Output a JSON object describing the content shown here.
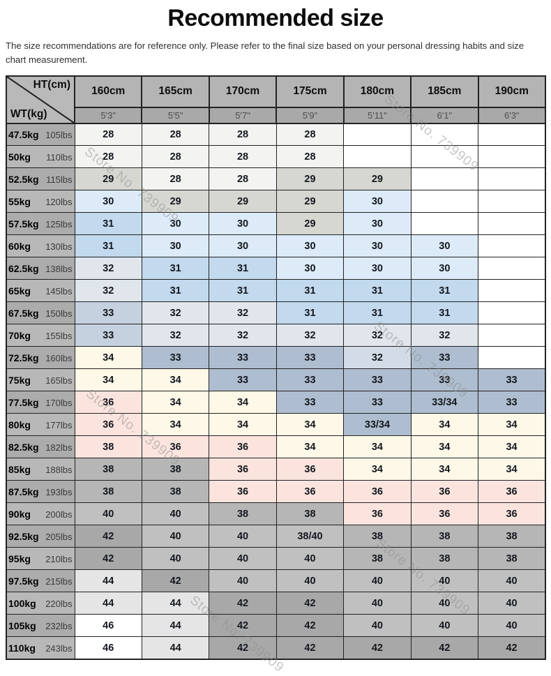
{
  "title": "Recommended size",
  "subtitle": "The size recommendations are for reference only. Please refer to the final size based on your personal dressing habits and size chart measurement.",
  "watermark_text": "Store No. 739909",
  "colors": {
    "header_cm_bg": "#b4b4b4",
    "header_ft_bg": "#a9a9a9",
    "header_ft_text": "#4e4e4e",
    "corner_bg": "#b9b9b9",
    "label_bg_odd": "#acacac",
    "label_bg_even": "#b8b8b8",
    "border": "#222222",
    "cell_text": "#14181e"
  },
  "chart_data": {
    "type": "table",
    "title": "Recommended size",
    "corner_top": "HT(cm)",
    "corner_bottom": "WT(kg)",
    "columns": [
      {
        "cm": "160cm",
        "ft": "5'3\""
      },
      {
        "cm": "165cm",
        "ft": "5'5\""
      },
      {
        "cm": "170cm",
        "ft": "5'7\""
      },
      {
        "cm": "175cm",
        "ft": "5'9\""
      },
      {
        "cm": "180cm",
        "ft": "5'11\""
      },
      {
        "cm": "185cm",
        "ft": "6'1\""
      },
      {
        "cm": "190cm",
        "ft": "6'3\""
      }
    ],
    "palette": {
      "empty": "#ffffff",
      "s28": "#f3f3f1",
      "s29": "#d7d7d2",
      "s30": "#dcebf7",
      "s31": "#c2d9ee",
      "s32": "#e0e6ec",
      "s32l": "#d3dce6",
      "s33a": "#c5d1de",
      "s33": "#aebdcf",
      "s34": "#fdf8e7",
      "s36": "#fbe4de",
      "s38": "#b6b6b6",
      "s40": "#c0c0c0",
      "s42": "#a8a8a8",
      "s44": "#e5e5e5",
      "s46": "#ffffff"
    },
    "rows": [
      {
        "kg": "47.5kg",
        "lbs": "105lbs",
        "cells": [
          [
            "28",
            "s28"
          ],
          [
            "28",
            "s28"
          ],
          [
            "28",
            "s28"
          ],
          [
            "28",
            "s28"
          ],
          [
            "",
            "empty"
          ],
          [
            "",
            "empty"
          ],
          [
            "",
            "empty"
          ]
        ]
      },
      {
        "kg": "50kg",
        "lbs": "110lbs",
        "cells": [
          [
            "28",
            "s28"
          ],
          [
            "28",
            "s28"
          ],
          [
            "28",
            "s28"
          ],
          [
            "28",
            "s28"
          ],
          [
            "",
            "empty"
          ],
          [
            "",
            "empty"
          ],
          [
            "",
            "empty"
          ]
        ]
      },
      {
        "kg": "52.5kg",
        "lbs": "115lbs",
        "cells": [
          [
            "29",
            "s29"
          ],
          [
            "28",
            "s28"
          ],
          [
            "28",
            "s28"
          ],
          [
            "29",
            "s29"
          ],
          [
            "29",
            "s29"
          ],
          [
            "",
            "empty"
          ],
          [
            "",
            "empty"
          ]
        ]
      },
      {
        "kg": "55kg",
        "lbs": "120lbs",
        "cells": [
          [
            "30",
            "s30"
          ],
          [
            "29",
            "s29"
          ],
          [
            "29",
            "s29"
          ],
          [
            "29",
            "s29"
          ],
          [
            "30",
            "s30"
          ],
          [
            "",
            "empty"
          ],
          [
            "",
            "empty"
          ]
        ]
      },
      {
        "kg": "57.5kg",
        "lbs": "125lbs",
        "cells": [
          [
            "31",
            "s31"
          ],
          [
            "30",
            "s30"
          ],
          [
            "30",
            "s30"
          ],
          [
            "29",
            "s29"
          ],
          [
            "30",
            "s30"
          ],
          [
            "",
            "empty"
          ],
          [
            "",
            "empty"
          ]
        ]
      },
      {
        "kg": "60kg",
        "lbs": "130lbs",
        "cells": [
          [
            "31",
            "s31"
          ],
          [
            "30",
            "s30"
          ],
          [
            "30",
            "s30"
          ],
          [
            "30",
            "s30"
          ],
          [
            "30",
            "s30"
          ],
          [
            "30",
            "s30"
          ],
          [
            "",
            "empty"
          ]
        ]
      },
      {
        "kg": "62.5kg",
        "lbs": "138lbs",
        "cells": [
          [
            "32",
            "s32"
          ],
          [
            "31",
            "s31"
          ],
          [
            "31",
            "s31"
          ],
          [
            "30",
            "s30"
          ],
          [
            "30",
            "s30"
          ],
          [
            "30",
            "s30"
          ],
          [
            "",
            "empty"
          ]
        ]
      },
      {
        "kg": "65kg",
        "lbs": "145lbs",
        "cells": [
          [
            "32",
            "s32"
          ],
          [
            "31",
            "s31"
          ],
          [
            "31",
            "s31"
          ],
          [
            "31",
            "s31"
          ],
          [
            "31",
            "s31"
          ],
          [
            "31",
            "s31"
          ],
          [
            "",
            "empty"
          ]
        ]
      },
      {
        "kg": "67.5kg",
        "lbs": "150lbs",
        "cells": [
          [
            "33",
            "s33a"
          ],
          [
            "32",
            "s32"
          ],
          [
            "32",
            "s32"
          ],
          [
            "31",
            "s31"
          ],
          [
            "31",
            "s31"
          ],
          [
            "31",
            "s31"
          ],
          [
            "",
            "empty"
          ]
        ]
      },
      {
        "kg": "70kg",
        "lbs": "155lbs",
        "cells": [
          [
            "33",
            "s33a"
          ],
          [
            "32",
            "s32"
          ],
          [
            "32",
            "s32"
          ],
          [
            "32",
            "s32"
          ],
          [
            "32",
            "s32"
          ],
          [
            "32",
            "s32"
          ],
          [
            "",
            "empty"
          ]
        ]
      },
      {
        "kg": "72.5kg",
        "lbs": "160lbs",
        "cells": [
          [
            "34",
            "s34"
          ],
          [
            "33",
            "s33"
          ],
          [
            "33",
            "s33"
          ],
          [
            "33",
            "s33"
          ],
          [
            "32",
            "s32l"
          ],
          [
            "33",
            "s33"
          ],
          [
            "",
            "empty"
          ]
        ]
      },
      {
        "kg": "75kg",
        "lbs": "165lbs",
        "cells": [
          [
            "34",
            "s34"
          ],
          [
            "34",
            "s34"
          ],
          [
            "33",
            "s33"
          ],
          [
            "33",
            "s33"
          ],
          [
            "33",
            "s33"
          ],
          [
            "33",
            "s33"
          ],
          [
            "33",
            "s33"
          ]
        ]
      },
      {
        "kg": "77.5kg",
        "lbs": "170lbs",
        "cells": [
          [
            "36",
            "s36"
          ],
          [
            "34",
            "s34"
          ],
          [
            "34",
            "s34"
          ],
          [
            "33",
            "s33"
          ],
          [
            "33",
            "s33"
          ],
          [
            "33/34",
            "s33"
          ],
          [
            "33",
            "s33"
          ]
        ]
      },
      {
        "kg": "80kg",
        "lbs": "177lbs",
        "cells": [
          [
            "36",
            "s36"
          ],
          [
            "34",
            "s34"
          ],
          [
            "34",
            "s34"
          ],
          [
            "34",
            "s34"
          ],
          [
            "33/34",
            "s33"
          ],
          [
            "34",
            "s34"
          ],
          [
            "34",
            "s34"
          ]
        ]
      },
      {
        "kg": "82.5kg",
        "lbs": "182lbs",
        "cells": [
          [
            "38",
            "s36"
          ],
          [
            "36",
            "s36"
          ],
          [
            "36",
            "s36"
          ],
          [
            "34",
            "s34"
          ],
          [
            "34",
            "s34"
          ],
          [
            "34",
            "s34"
          ],
          [
            "34",
            "s34"
          ]
        ]
      },
      {
        "kg": "85kg",
        "lbs": "188lbs",
        "cells": [
          [
            "38",
            "s38"
          ],
          [
            "38",
            "s38"
          ],
          [
            "36",
            "s36"
          ],
          [
            "36",
            "s36"
          ],
          [
            "34",
            "s34"
          ],
          [
            "34",
            "s34"
          ],
          [
            "34",
            "s34"
          ]
        ]
      },
      {
        "kg": "87.5kg",
        "lbs": "193lbs",
        "cells": [
          [
            "38",
            "s38"
          ],
          [
            "38",
            "s38"
          ],
          [
            "36",
            "s36"
          ],
          [
            "36",
            "s36"
          ],
          [
            "36",
            "s36"
          ],
          [
            "36",
            "s36"
          ],
          [
            "36",
            "s36"
          ]
        ]
      },
      {
        "kg": "90kg",
        "lbs": "200lbs",
        "cells": [
          [
            "40",
            "s40"
          ],
          [
            "40",
            "s40"
          ],
          [
            "38",
            "s38"
          ],
          [
            "38",
            "s38"
          ],
          [
            "36",
            "s36"
          ],
          [
            "36",
            "s36"
          ],
          [
            "36",
            "s36"
          ]
        ]
      },
      {
        "kg": "92.5kg",
        "lbs": "205lbs",
        "cells": [
          [
            "42",
            "s42"
          ],
          [
            "40",
            "s40"
          ],
          [
            "40",
            "s40"
          ],
          [
            "38/40",
            "s40"
          ],
          [
            "38",
            "s38"
          ],
          [
            "38",
            "s38"
          ],
          [
            "38",
            "s38"
          ]
        ]
      },
      {
        "kg": "95kg",
        "lbs": "210lbs",
        "cells": [
          [
            "42",
            "s42"
          ],
          [
            "40",
            "s40"
          ],
          [
            "40",
            "s40"
          ],
          [
            "40",
            "s40"
          ],
          [
            "38",
            "s38"
          ],
          [
            "38",
            "s38"
          ],
          [
            "38",
            "s38"
          ]
        ]
      },
      {
        "kg": "97.5kg",
        "lbs": "215lbs",
        "cells": [
          [
            "44",
            "s44"
          ],
          [
            "42",
            "s42"
          ],
          [
            "40",
            "s40"
          ],
          [
            "40",
            "s40"
          ],
          [
            "40",
            "s40"
          ],
          [
            "40",
            "s40"
          ],
          [
            "40",
            "s40"
          ]
        ]
      },
      {
        "kg": "100kg",
        "lbs": "220lbs",
        "cells": [
          [
            "44",
            "s44"
          ],
          [
            "44",
            "s44"
          ],
          [
            "42",
            "s42"
          ],
          [
            "42",
            "s42"
          ],
          [
            "40",
            "s40"
          ],
          [
            "40",
            "s40"
          ],
          [
            "40",
            "s40"
          ]
        ]
      },
      {
        "kg": "105kg",
        "lbs": "232lbs",
        "cells": [
          [
            "46",
            "s46"
          ],
          [
            "44",
            "s44"
          ],
          [
            "42",
            "s42"
          ],
          [
            "42",
            "s42"
          ],
          [
            "40",
            "s40"
          ],
          [
            "40",
            "s40"
          ],
          [
            "40",
            "s40"
          ]
        ]
      },
      {
        "kg": "110kg",
        "lbs": "243lbs",
        "cells": [
          [
            "46",
            "s46"
          ],
          [
            "44",
            "s44"
          ],
          [
            "42",
            "s42"
          ],
          [
            "42",
            "s42"
          ],
          [
            "42",
            "s42"
          ],
          [
            "42",
            "s42"
          ],
          [
            "42",
            "s42"
          ]
        ]
      }
    ]
  }
}
